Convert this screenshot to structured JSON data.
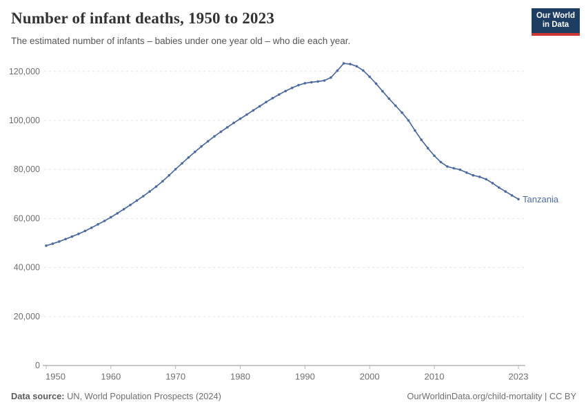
{
  "header": {
    "title": "Number of infant deaths, 1950 to 2023",
    "subtitle": "The estimated number of infants – babies under one year old – who die each year.",
    "logo": {
      "line1": "Our World",
      "line2": "in Data"
    }
  },
  "chart_data": {
    "type": "line",
    "title": "Number of infant deaths, 1950 to 2023",
    "entity_label": "Tanzania",
    "x": [
      1950,
      1951,
      1952,
      1953,
      1954,
      1955,
      1956,
      1957,
      1958,
      1959,
      1960,
      1961,
      1962,
      1963,
      1964,
      1965,
      1966,
      1967,
      1968,
      1969,
      1970,
      1971,
      1972,
      1973,
      1974,
      1975,
      1976,
      1977,
      1978,
      1979,
      1980,
      1981,
      1982,
      1983,
      1984,
      1985,
      1986,
      1987,
      1988,
      1989,
      1990,
      1991,
      1992,
      1993,
      1994,
      1995,
      1996,
      1997,
      1998,
      1999,
      2000,
      2001,
      2002,
      2003,
      2004,
      2005,
      2006,
      2007,
      2008,
      2009,
      2010,
      2011,
      2012,
      2013,
      2014,
      2015,
      2016,
      2017,
      2018,
      2019,
      2020,
      2021,
      2022,
      2023
    ],
    "series": [
      {
        "name": "Tanzania",
        "values": [
          48900,
          49700,
          50600,
          51600,
          52600,
          53700,
          54900,
          56200,
          57600,
          59000,
          60500,
          62100,
          63800,
          65500,
          67300,
          69100,
          71000,
          73000,
          75200,
          77600,
          80100,
          82500,
          84900,
          87200,
          89400,
          91500,
          93500,
          95400,
          97200,
          99000,
          100700,
          102400,
          104100,
          105800,
          107500,
          109100,
          110600,
          112000,
          113300,
          114400,
          115200,
          115600,
          115900,
          116300,
          117500,
          120300,
          123300,
          123000,
          122100,
          120400,
          117800,
          115000,
          111900,
          108900,
          106000,
          103200,
          100000,
          95900,
          92100,
          88700,
          85600,
          83000,
          81200,
          80500,
          79900,
          78700,
          77600,
          77000,
          76000,
          74400,
          72600,
          71000,
          69400,
          67900
        ]
      }
    ],
    "xlabel": "",
    "ylabel": "",
    "xlim": [
      1950,
      2023
    ],
    "ylim": [
      0,
      130000
    ],
    "yticks": [
      {
        "value": 0,
        "label": "0"
      },
      {
        "value": 20000,
        "label": "20,000"
      },
      {
        "value": 40000,
        "label": "40,000"
      },
      {
        "value": 60000,
        "label": "60,000"
      },
      {
        "value": 80000,
        "label": "80,000"
      },
      {
        "value": 100000,
        "label": "100,000"
      },
      {
        "value": 120000,
        "label": "120,000"
      }
    ],
    "xticks": [
      {
        "value": 1950,
        "label": "1950"
      },
      {
        "value": 1960,
        "label": "1960"
      },
      {
        "value": 1970,
        "label": "1970"
      },
      {
        "value": 1980,
        "label": "1980"
      },
      {
        "value": 1990,
        "label": "1990"
      },
      {
        "value": 2000,
        "label": "2000"
      },
      {
        "value": 2010,
        "label": "2010"
      },
      {
        "value": 2023,
        "label": "2023"
      }
    ],
    "grid": "horizontal-dashed",
    "legend_position": "line-end-label",
    "marker": "circle"
  },
  "footer": {
    "datasource_label": "Data source:",
    "datasource_value": " UN, World Population Prospects (2024)",
    "credit": "OurWorldinData.org/child-mortality | CC BY"
  },
  "colors": {
    "line": "#4c6a9c",
    "grid": "#e2e2e2",
    "axis": "#8f8f8f",
    "tick": "#b3b3b3",
    "tick_label": "#6e6e6e",
    "brand_navy": "#1d3d63",
    "brand_red": "#cd3632"
  }
}
